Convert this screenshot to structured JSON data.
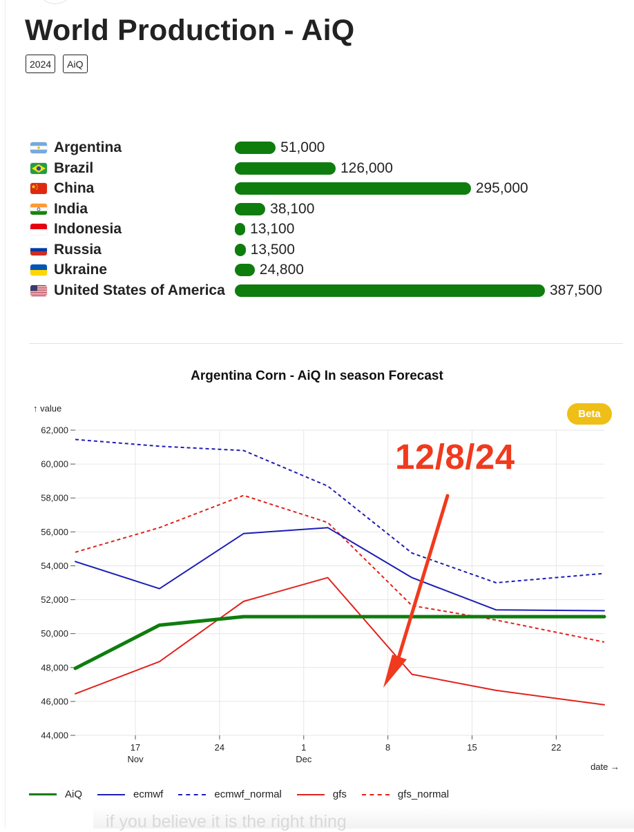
{
  "page": {
    "title": "World Production - AiQ",
    "tags": [
      "2024",
      "AiQ"
    ]
  },
  "production": [
    {
      "country": "Argentina",
      "flag": "argentina-flag",
      "value": 51000,
      "label": "51,000"
    },
    {
      "country": "Brazil",
      "flag": "brazil-flag",
      "value": 126000,
      "label": "126,000"
    },
    {
      "country": "China",
      "flag": "china-flag",
      "value": 295000,
      "label": "295,000"
    },
    {
      "country": "India",
      "flag": "india-flag",
      "value": 38100,
      "label": "38,100"
    },
    {
      "country": "Indonesia",
      "flag": "indonesia-flag",
      "value": 13100,
      "label": "13,100"
    },
    {
      "country": "Russia",
      "flag": "russia-flag",
      "value": 13500,
      "label": "13,500"
    },
    {
      "country": "Ukraine",
      "flag": "ukraine-flag",
      "value": 24800,
      "label": "24,800"
    },
    {
      "country": "United States of America",
      "flag": "usa-flag",
      "value": 387500,
      "label": "387,500"
    }
  ],
  "production_max": 387500,
  "colors": {
    "bar": "#0e7d0e",
    "aiq": "#0e7d0e",
    "ecmwf": "#1d1db5",
    "gfs": "#e0221b",
    "annotation": "#f03a1e",
    "beta": "#efbf17"
  },
  "chart_badge": "Beta",
  "annotation_text": "12/8/24",
  "chart_data": {
    "type": "line",
    "title": "Argentina Corn - AiQ In season Forecast",
    "ylabel": "↑ value",
    "xlabel": "date →",
    "ylim": [
      44000,
      62000
    ],
    "xlim": [
      "2024-11-12",
      "2024-12-26"
    ],
    "yticks": [
      "44,000",
      "46,000",
      "48,000",
      "50,000",
      "52,000",
      "54,000",
      "56,000",
      "58,000",
      "60,000",
      "62,000"
    ],
    "xticks": [
      {
        "day": "17",
        "month": "Nov",
        "date": "2024-11-17"
      },
      {
        "day": "24",
        "month": "",
        "date": "2024-11-24"
      },
      {
        "day": "1",
        "month": "Dec",
        "date": "2024-12-01"
      },
      {
        "day": "8",
        "month": "",
        "date": "2024-12-08"
      },
      {
        "day": "15",
        "month": "",
        "date": "2024-12-15"
      },
      {
        "day": "22",
        "month": "",
        "date": "2024-12-22"
      }
    ],
    "grid": true,
    "legend_position": "bottom-left",
    "x": [
      "2024-11-12",
      "2024-11-19",
      "2024-11-26",
      "2024-12-03",
      "2024-12-10",
      "2024-12-17",
      "2024-12-26"
    ],
    "series": [
      {
        "name": "AiQ",
        "style": "solid",
        "width": 5,
        "values": [
          47950,
          50500,
          51000,
          51000,
          51000,
          51000,
          51000
        ]
      },
      {
        "name": "ecmwf",
        "style": "solid",
        "width": 2,
        "values": [
          54250,
          52650,
          55900,
          56250,
          53300,
          51400,
          51350
        ]
      },
      {
        "name": "ecmwf_normal",
        "style": "dashed",
        "width": 2,
        "values": [
          61450,
          61050,
          60800,
          58700,
          54750,
          53000,
          53550
        ]
      },
      {
        "name": "gfs",
        "style": "solid",
        "width": 2,
        "values": [
          46450,
          48350,
          51900,
          53300,
          47600,
          46650,
          45800
        ]
      },
      {
        "name": "gfs_normal",
        "style": "dashed",
        "width": 2,
        "values": [
          54800,
          56250,
          58150,
          56550,
          51650,
          50800,
          49500
        ]
      }
    ]
  },
  "bottom_text": "if you believe it is the right thing"
}
